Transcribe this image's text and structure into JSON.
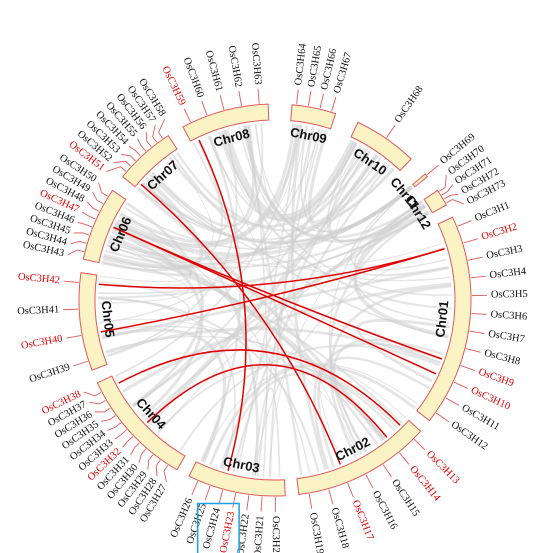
{
  "colors": {
    "segment_fill": "#fbf3c4",
    "segment_stroke": "#e05a5a",
    "highlight_gene": "#e00000",
    "normal_gene": "#111111",
    "synteny_grey": "#cfcfcf",
    "segmental_duplication": "#e00000",
    "highlight_box": "#1aa0e6"
  },
  "chromosomes": [
    {
      "id": "c1",
      "label": "Chr01",
      "start": 65,
      "end": 128
    },
    {
      "id": "c2",
      "label": "Chr02",
      "start": 132,
      "end": 173
    },
    {
      "id": "c3",
      "label": "Chr03",
      "start": 177,
      "end": 206
    },
    {
      "id": "c4",
      "label": "Chr04",
      "start": 210,
      "end": 245
    },
    {
      "id": "c5",
      "label": "Chr05",
      "start": 249,
      "end": 278
    },
    {
      "id": "c6",
      "label": "Chr06",
      "start": 282,
      "end": 304
    },
    {
      "id": "c7",
      "label": "Chr07",
      "start": 309,
      "end": 327
    },
    {
      "id": "c8",
      "label": "Chr08",
      "start": 332,
      "end": 358
    },
    {
      "id": "c9",
      "label": "Chr09",
      "start": 5,
      "end": 18
    },
    {
      "id": "c10",
      "label": "Chr10",
      "start": 25,
      "end": 44
    },
    {
      "id": "c11",
      "label": "Chr11",
      "start": 50,
      "end": 51
    },
    {
      "id": "c12",
      "label": "Chr12",
      "start": 56,
      "end": 61
    }
  ],
  "genes": [
    {
      "name": "OsC3H1",
      "chr": "Chr01",
      "highlight": false
    },
    {
      "name": "OsC3H2",
      "chr": "Chr01",
      "highlight": true
    },
    {
      "name": "OsC3H3",
      "chr": "Chr01",
      "highlight": false
    },
    {
      "name": "OsC3H4",
      "chr": "Chr01",
      "highlight": false
    },
    {
      "name": "OsC3H5",
      "chr": "Chr01",
      "highlight": false
    },
    {
      "name": "OsC3H6",
      "chr": "Chr01",
      "highlight": false
    },
    {
      "name": "OsC3H7",
      "chr": "Chr01",
      "highlight": false
    },
    {
      "name": "OsC3H8",
      "chr": "Chr01",
      "highlight": false
    },
    {
      "name": "OsC3H9",
      "chr": "Chr01",
      "highlight": true
    },
    {
      "name": "OsC3H10",
      "chr": "Chr01",
      "highlight": true
    },
    {
      "name": "OsC3H11",
      "chr": "Chr01",
      "highlight": false
    },
    {
      "name": "OsC3H12",
      "chr": "Chr01",
      "highlight": false
    },
    {
      "name": "OsC3H13",
      "chr": "Chr02",
      "highlight": true
    },
    {
      "name": "OsC3H14",
      "chr": "Chr02",
      "highlight": true
    },
    {
      "name": "OsC3H15",
      "chr": "Chr02",
      "highlight": false
    },
    {
      "name": "OsC3H16",
      "chr": "Chr02",
      "highlight": false
    },
    {
      "name": "OsC3H17",
      "chr": "Chr02",
      "highlight": true
    },
    {
      "name": "OsC3H18",
      "chr": "Chr02",
      "highlight": false
    },
    {
      "name": "OsC3H19",
      "chr": "Chr02",
      "highlight": false
    },
    {
      "name": "OsC3H20",
      "chr": "Chr03",
      "highlight": false
    },
    {
      "name": "OsC3H21",
      "chr": "Chr03",
      "highlight": false
    },
    {
      "name": "OsC3H22",
      "chr": "Chr03",
      "highlight": false
    },
    {
      "name": "OsC3H23",
      "chr": "Chr03",
      "highlight": true
    },
    {
      "name": "OsC3H24",
      "chr": "Chr03",
      "highlight": false
    },
    {
      "name": "OsC3H25",
      "chr": "Chr03",
      "highlight": false
    },
    {
      "name": "OsC3H26",
      "chr": "Chr03",
      "highlight": false
    },
    {
      "name": "OsC3H27",
      "chr": "Chr04",
      "highlight": false
    },
    {
      "name": "OsC3H28",
      "chr": "Chr04",
      "highlight": false
    },
    {
      "name": "OsC3H29",
      "chr": "Chr04",
      "highlight": false
    },
    {
      "name": "OsC3H30",
      "chr": "Chr04",
      "highlight": false
    },
    {
      "name": "OsC3H31",
      "chr": "Chr04",
      "highlight": false
    },
    {
      "name": "OsC3H32",
      "chr": "Chr04",
      "highlight": true
    },
    {
      "name": "OsC3H33",
      "chr": "Chr04",
      "highlight": false
    },
    {
      "name": "OsC3H34",
      "chr": "Chr04",
      "highlight": false
    },
    {
      "name": "OsC3H35",
      "chr": "Chr04",
      "highlight": false
    },
    {
      "name": "OsC3H36",
      "chr": "Chr04",
      "highlight": false
    },
    {
      "name": "OsC3H37",
      "chr": "Chr04",
      "highlight": false
    },
    {
      "name": "OsC3H38",
      "chr": "Chr04",
      "highlight": true
    },
    {
      "name": "OsC3H39",
      "chr": "Chr05",
      "highlight": false
    },
    {
      "name": "OsC3H40",
      "chr": "Chr05",
      "highlight": true
    },
    {
      "name": "OsC3H41",
      "chr": "Chr05",
      "highlight": false
    },
    {
      "name": "OsC3H42",
      "chr": "Chr05",
      "highlight": true
    },
    {
      "name": "OsC3H43",
      "chr": "Chr06",
      "highlight": false
    },
    {
      "name": "OsC3H44",
      "chr": "Chr06",
      "highlight": false
    },
    {
      "name": "OsC3H45",
      "chr": "Chr06",
      "highlight": false
    },
    {
      "name": "OsC3H46",
      "chr": "Chr06",
      "highlight": false
    },
    {
      "name": "OsC3H47",
      "chr": "Chr06",
      "highlight": true
    },
    {
      "name": "OsC3H48",
      "chr": "Chr06",
      "highlight": false
    },
    {
      "name": "OsC3H49",
      "chr": "Chr06",
      "highlight": false
    },
    {
      "name": "OsC3H50",
      "chr": "Chr06",
      "highlight": false
    },
    {
      "name": "OsC3H51",
      "chr": "Chr07",
      "highlight": true
    },
    {
      "name": "OsC3H52",
      "chr": "Chr07",
      "highlight": false
    },
    {
      "name": "OsC3H53",
      "chr": "Chr07",
      "highlight": false
    },
    {
      "name": "OsC3H54",
      "chr": "Chr07",
      "highlight": false
    },
    {
      "name": "OsC3H55",
      "chr": "Chr07",
      "highlight": false
    },
    {
      "name": "OsC3H56",
      "chr": "Chr07",
      "highlight": false
    },
    {
      "name": "OsC3H57",
      "chr": "Chr07",
      "highlight": false
    },
    {
      "name": "OsC3H58",
      "chr": "Chr07",
      "highlight": false
    },
    {
      "name": "OsC3H59",
      "chr": "Chr08",
      "highlight": true
    },
    {
      "name": "OsC3H60",
      "chr": "Chr08",
      "highlight": false
    },
    {
      "name": "OsC3H61",
      "chr": "Chr08",
      "highlight": false
    },
    {
      "name": "OsC3H62",
      "chr": "Chr08",
      "highlight": false
    },
    {
      "name": "OsC3H63",
      "chr": "Chr08",
      "highlight": false
    },
    {
      "name": "OsC3H64",
      "chr": "Chr09",
      "highlight": false
    },
    {
      "name": "OsC3H65",
      "chr": "Chr09",
      "highlight": false
    },
    {
      "name": "OsC3H66",
      "chr": "Chr09",
      "highlight": false
    },
    {
      "name": "OsC3H67",
      "chr": "Chr09",
      "highlight": false
    },
    {
      "name": "OsC3H68",
      "chr": "Chr10",
      "highlight": false
    },
    {
      "name": "OsC3H69",
      "chr": "Chr11",
      "highlight": false
    },
    {
      "name": "OsC3H70",
      "chr": "Chr12",
      "highlight": false
    },
    {
      "name": "OsC3H71",
      "chr": "Chr12",
      "highlight": false
    },
    {
      "name": "OsC3H72",
      "chr": "Chr12",
      "highlight": false
    },
    {
      "name": "OsC3H73",
      "chr": "Chr12",
      "highlight": false
    }
  ],
  "boxed_genes": [
    "OsC3H23",
    "OsC3H24"
  ],
  "segmental_duplications": [
    [
      "OsC3H59",
      "OsC3H24"
    ],
    [
      "OsC3H47",
      "OsC3H9"
    ],
    [
      "OsC3H47",
      "OsC3H10"
    ],
    [
      "OsC3H42",
      "OsC3H2"
    ],
    [
      "OsC3H40",
      "OsC3H2"
    ],
    [
      "OsC3H38",
      "OsC3H13"
    ],
    [
      "OsC3H32",
      "OsC3H14"
    ],
    [
      "OsC3H51",
      "OsC3H17"
    ]
  ]
}
